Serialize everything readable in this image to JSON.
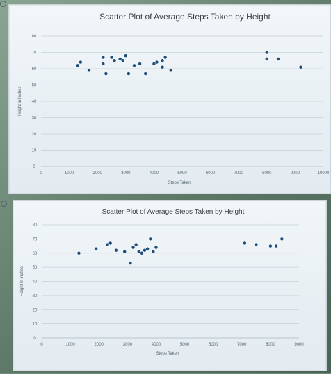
{
  "chart_data": [
    {
      "type": "scatter",
      "title": "Scatter Plot of Average Steps Taken by Height",
      "xlabel": "Steps Taken",
      "ylabel": "Height in Inches",
      "xlim": [
        0,
        10000
      ],
      "ylim": [
        0,
        80
      ],
      "xticks": [
        "0",
        "1000",
        "2000",
        "3000",
        "4000",
        "5000",
        "6000",
        "7000",
        "8000",
        "9000",
        "10000"
      ],
      "yticks": [
        "0",
        "10",
        "20",
        "30",
        "40",
        "50",
        "60",
        "70",
        "80"
      ],
      "grid": true,
      "points": [
        {
          "x": 1300,
          "y": 62
        },
        {
          "x": 1400,
          "y": 64
        },
        {
          "x": 1700,
          "y": 59
        },
        {
          "x": 2200,
          "y": 67
        },
        {
          "x": 2200,
          "y": 63
        },
        {
          "x": 2300,
          "y": 57
        },
        {
          "x": 2500,
          "y": 67
        },
        {
          "x": 2600,
          "y": 65
        },
        {
          "x": 2800,
          "y": 66
        },
        {
          "x": 2900,
          "y": 65
        },
        {
          "x": 3000,
          "y": 68
        },
        {
          "x": 3100,
          "y": 57
        },
        {
          "x": 3300,
          "y": 62
        },
        {
          "x": 3500,
          "y": 63
        },
        {
          "x": 3700,
          "y": 57
        },
        {
          "x": 4000,
          "y": 63
        },
        {
          "x": 4100,
          "y": 64
        },
        {
          "x": 4300,
          "y": 61
        },
        {
          "x": 4300,
          "y": 65
        },
        {
          "x": 4400,
          "y": 67
        },
        {
          "x": 4600,
          "y": 59
        },
        {
          "x": 8000,
          "y": 70
        },
        {
          "x": 8000,
          "y": 66
        },
        {
          "x": 8400,
          "y": 66
        },
        {
          "x": 9200,
          "y": 61
        }
      ]
    },
    {
      "type": "scatter",
      "title": "Scatter Plot of Average Steps Taken by Height",
      "xlabel": "Steps Taken",
      "ylabel": "Height in Inches",
      "xlim": [
        0,
        9000
      ],
      "ylim": [
        0,
        80
      ],
      "xticks": [
        "0",
        "1000",
        "2000",
        "3000",
        "4000",
        "5000",
        "6000",
        "7000",
        "8000",
        "9000"
      ],
      "yticks": [
        "0",
        "10",
        "20",
        "30",
        "40",
        "50",
        "60",
        "70",
        "80"
      ],
      "grid": true,
      "points": [
        {
          "x": 1300,
          "y": 60
        },
        {
          "x": 1900,
          "y": 63
        },
        {
          "x": 2300,
          "y": 66
        },
        {
          "x": 2400,
          "y": 67
        },
        {
          "x": 2600,
          "y": 62
        },
        {
          "x": 2900,
          "y": 61
        },
        {
          "x": 3100,
          "y": 53
        },
        {
          "x": 3200,
          "y": 64
        },
        {
          "x": 3300,
          "y": 66
        },
        {
          "x": 3400,
          "y": 61
        },
        {
          "x": 3500,
          "y": 60
        },
        {
          "x": 3600,
          "y": 62
        },
        {
          "x": 3700,
          "y": 63
        },
        {
          "x": 3800,
          "y": 70
        },
        {
          "x": 3900,
          "y": 61
        },
        {
          "x": 4000,
          "y": 64
        },
        {
          "x": 7100,
          "y": 67
        },
        {
          "x": 7500,
          "y": 66
        },
        {
          "x": 8000,
          "y": 65
        },
        {
          "x": 8200,
          "y": 65
        },
        {
          "x": 8400,
          "y": 70
        }
      ]
    }
  ]
}
